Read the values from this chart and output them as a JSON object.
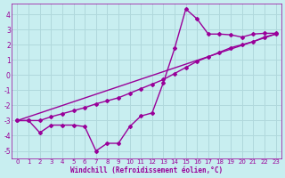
{
  "xlabel": "Windchill (Refroidissement éolien,°C)",
  "bg_color": "#c8eef0",
  "grid_color": "#b0d8dc",
  "line_color": "#990099",
  "xlim": [
    -0.5,
    23.5
  ],
  "ylim": [
    -5.5,
    4.7
  ],
  "xticks": [
    0,
    1,
    2,
    3,
    4,
    5,
    6,
    7,
    8,
    9,
    10,
    11,
    12,
    13,
    14,
    15,
    16,
    17,
    18,
    19,
    20,
    21,
    22,
    23
  ],
  "yticks": [
    -5,
    -4,
    -3,
    -2,
    -1,
    0,
    1,
    2,
    3,
    4
  ],
  "line1_x": [
    0,
    1,
    2,
    3,
    4,
    5,
    6,
    7,
    8,
    9,
    10,
    11,
    12,
    13,
    14,
    15,
    16,
    17,
    18,
    19,
    20,
    21,
    22,
    23
  ],
  "line1_y": [
    -3.0,
    -3.0,
    -3.8,
    -3.3,
    -3.3,
    -3.3,
    -3.4,
    -5.0,
    -4.5,
    -4.5,
    -3.4,
    -2.7,
    -2.5,
    -0.5,
    1.75,
    4.35,
    3.7,
    2.7,
    2.7,
    2.65,
    2.5,
    2.7,
    2.75,
    2.75
  ],
  "line2_x": [
    0,
    1,
    2,
    3,
    4,
    5,
    6,
    7,
    8,
    9,
    10,
    11,
    12,
    13,
    14,
    15,
    16,
    17,
    18,
    19,
    20,
    21,
    22,
    23
  ],
  "line2_y": [
    -3.0,
    -3.0,
    -3.0,
    -2.75,
    -2.55,
    -2.35,
    -2.15,
    -1.9,
    -1.7,
    -1.5,
    -1.2,
    -0.9,
    -0.6,
    -0.3,
    0.1,
    0.5,
    0.9,
    1.2,
    1.5,
    1.8,
    2.0,
    2.2,
    2.5,
    2.7
  ],
  "line3_x": [
    0,
    23
  ],
  "line3_y": [
    -3.0,
    2.7
  ],
  "marker": "D",
  "markersize": 2.0,
  "linewidth": 1.0
}
